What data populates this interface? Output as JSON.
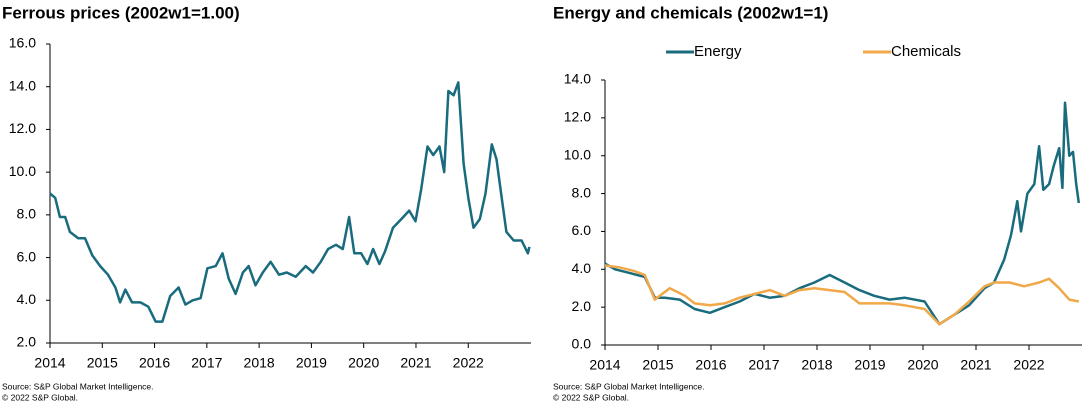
{
  "chart_data": [
    {
      "type": "line",
      "title": "Ferrous prices (2002w1=1.00)",
      "source": "Source: S&P Global Market Intelligence.",
      "copyright": "© 2022 S&P Global.",
      "xlim": [
        2014,
        2023.2
      ],
      "xticks": [
        2014,
        2015,
        2016,
        2017,
        2018,
        2019,
        2020,
        2021,
        2022
      ],
      "ylim": [
        2,
        16
      ],
      "yticks": [
        {
          "value": 2,
          "label": "2.0"
        },
        {
          "value": 4,
          "label": "4.0"
        },
        {
          "value": 6,
          "label": "6.0"
        },
        {
          "value": 8,
          "label": "8.0"
        },
        {
          "value": 10,
          "label": "10.0"
        },
        {
          "value": 12,
          "label": "12.0"
        },
        {
          "value": 14,
          "label": "14.0"
        },
        {
          "value": 16,
          "label": "16.0"
        }
      ],
      "grid": false,
      "legend": false,
      "series": [
        {
          "color": "#196b7e",
          "x": [
            2014,
            2014.1,
            2014.19,
            2014.29,
            2014.38,
            2014.54,
            2014.67,
            2014.81,
            2014.96,
            2015.11,
            2015.25,
            2015.34,
            2015.44,
            2015.57,
            2015.73,
            2015.88,
            2016.02,
            2016.15,
            2016.3,
            2016.46,
            2016.59,
            2016.73,
            2016.88,
            2017.01,
            2017.17,
            2017.3,
            2017.42,
            2017.55,
            2017.69,
            2017.8,
            2017.93,
            2018.07,
            2018.22,
            2018.38,
            2018.53,
            2018.7,
            2018.89,
            2019.03,
            2019.18,
            2019.32,
            2019.47,
            2019.6,
            2019.72,
            2019.82,
            2019.95,
            2020.07,
            2020.18,
            2020.3,
            2020.41,
            2020.56,
            2020.72,
            2020.87,
            2020.99,
            2021.1,
            2021.22,
            2021.33,
            2021.45,
            2021.54,
            2021.62,
            2021.72,
            2021.81,
            2021.91,
            2022.0,
            2022.1,
            2022.22,
            2022.33,
            2022.45,
            2022.54,
            2022.64,
            2022.73,
            2022.87,
            2023.02,
            2023.14,
            2023.17
          ],
          "values": [
            9.0,
            8.8,
            7.9,
            7.9,
            7.2,
            6.9,
            6.9,
            6.1,
            5.6,
            5.2,
            4.6,
            3.9,
            4.5,
            3.9,
            3.9,
            3.7,
            3.0,
            3.0,
            4.2,
            4.6,
            3.8,
            4.0,
            4.1,
            5.5,
            5.6,
            6.2,
            5.0,
            4.3,
            5.3,
            5.6,
            4.7,
            5.3,
            5.8,
            5.2,
            5.3,
            5.1,
            5.6,
            5.3,
            5.8,
            6.4,
            6.6,
            6.4,
            7.9,
            6.2,
            6.2,
            5.7,
            6.4,
            5.7,
            6.3,
            7.4,
            7.8,
            8.2,
            7.7,
            9.2,
            11.2,
            10.8,
            11.2,
            10.0,
            13.8,
            13.6,
            14.2,
            10.4,
            8.8,
            7.4,
            7.8,
            9.0,
            11.3,
            10.6,
            8.8,
            7.2,
            6.8,
            6.8,
            6.2,
            6.5
          ]
        }
      ]
    },
    {
      "type": "line",
      "title": "Energy and chemicals (2002w1=1)",
      "source": "Source: S&P Global Market Intelligence.",
      "copyright": "© 2022 S&P Global.",
      "xlim": [
        2014,
        2023
      ],
      "xticks": [
        2014,
        2015,
        2016,
        2017,
        2018,
        2019,
        2020,
        2021,
        2022
      ],
      "ylim": [
        0,
        14
      ],
      "yticks": [
        {
          "value": 0,
          "label": "0.0"
        },
        {
          "value": 2,
          "label": "2.0"
        },
        {
          "value": 4,
          "label": "4.0"
        },
        {
          "value": 6,
          "label": "6.0"
        },
        {
          "value": 8,
          "label": "8.0"
        },
        {
          "value": 10,
          "label": "10.0"
        },
        {
          "value": 12,
          "label": "12.0"
        },
        {
          "value": 14,
          "label": "14.0"
        }
      ],
      "grid": false,
      "legend": "top",
      "series": [
        {
          "name": "Energy",
          "color": "#196b7e",
          "x": [
            2014,
            2014.19,
            2014.47,
            2014.75,
            2014.94,
            2015.13,
            2015.41,
            2015.69,
            2015.98,
            2016.26,
            2016.54,
            2016.82,
            2017.11,
            2017.39,
            2017.67,
            2017.95,
            2018.24,
            2018.52,
            2018.8,
            2019.08,
            2019.37,
            2019.65,
            2020.03,
            2020.31,
            2020.59,
            2020.87,
            2021.16,
            2021.34,
            2021.53,
            2021.66,
            2021.78,
            2021.85,
            2021.97,
            2022.1,
            2022.19,
            2022.27,
            2022.38,
            2022.47,
            2022.57,
            2022.63,
            2022.68,
            2022.76,
            2022.83,
            2022.89,
            2022.94
          ],
          "values": [
            4.3,
            4.0,
            3.8,
            3.6,
            2.5,
            2.5,
            2.4,
            1.9,
            1.7,
            2.0,
            2.3,
            2.7,
            2.5,
            2.6,
            3.0,
            3.3,
            3.7,
            3.3,
            2.9,
            2.6,
            2.4,
            2.5,
            2.3,
            1.1,
            1.6,
            2.1,
            3.0,
            3.3,
            4.5,
            5.8,
            7.6,
            6.0,
            8.0,
            8.5,
            10.5,
            8.2,
            8.5,
            9.5,
            10.4,
            8.3,
            12.8,
            10.0,
            10.2,
            8.5,
            7.5
          ]
        },
        {
          "name": "Chemicals",
          "color": "#f0a848",
          "x": [
            2014,
            2014.28,
            2014.56,
            2014.75,
            2014.94,
            2015.22,
            2015.51,
            2015.69,
            2015.98,
            2016.26,
            2016.54,
            2016.82,
            2017.11,
            2017.39,
            2017.67,
            2017.95,
            2018.24,
            2018.52,
            2018.8,
            2019.08,
            2019.37,
            2019.65,
            2020.03,
            2020.31,
            2020.59,
            2020.87,
            2021.16,
            2021.34,
            2021.63,
            2021.91,
            2022.19,
            2022.38,
            2022.57,
            2022.76,
            2022.94
          ],
          "values": [
            4.2,
            4.1,
            3.9,
            3.7,
            2.4,
            3.0,
            2.6,
            2.2,
            2.1,
            2.2,
            2.5,
            2.7,
            2.9,
            2.6,
            2.9,
            3.0,
            2.9,
            2.8,
            2.2,
            2.2,
            2.2,
            2.1,
            1.9,
            1.1,
            1.6,
            2.3,
            3.1,
            3.3,
            3.3,
            3.1,
            3.3,
            3.5,
            3.0,
            2.4,
            2.3
          ]
        }
      ]
    }
  ]
}
